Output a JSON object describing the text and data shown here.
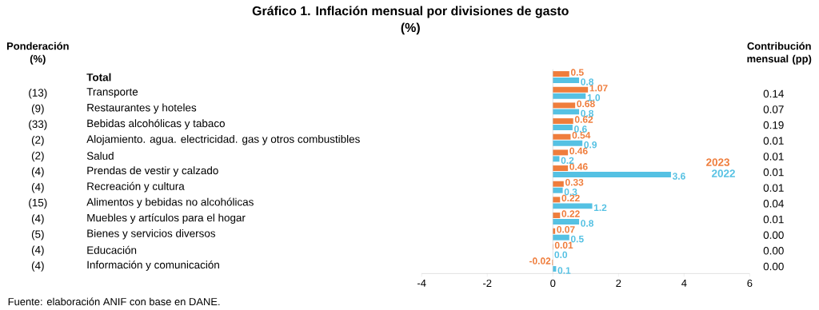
{
  "chart_data": {
    "type": "bar",
    "orientation": "horizontal",
    "title": "Gráfico 1. Inflación mensual por divisiones de gasto",
    "subtitle": "(%)",
    "categories": [
      "**Total**",
      "Transporte",
      "Restaurantes y hoteles",
      "Bebidas alcohólicas y tabaco",
      "Alojamiento. agua. electricidad. gas y otros combustibles",
      "Salud",
      "Prendas de vestir y calzado",
      "Recreación y cultura",
      "Alimentos y bebidas no alcohólicas",
      "Muebles y artículos para el hogar",
      "Bienes y servicios diversos",
      "Educación",
      "Información y comunicación"
    ],
    "series": [
      {
        "name": "2023",
        "color": "#ef7d3c",
        "values": [
          0.5,
          1.07,
          0.68,
          0.62,
          0.54,
          0.46,
          0.46,
          0.33,
          0.22,
          0.22,
          0.07,
          0.01,
          -0.02
        ],
        "value_labels": [
          "0.5",
          "1.07",
          "0.68",
          "0.62",
          "0.54",
          "0.46",
          "0.46",
          "0.33",
          "0.22",
          "0.22",
          "0.07",
          "0.01",
          "-0.02"
        ]
      },
      {
        "name": "2022",
        "color": "#55c1e3",
        "values": [
          0.8,
          1.0,
          0.8,
          0.6,
          0.9,
          0.2,
          3.6,
          0.3,
          1.2,
          0.8,
          0.5,
          0.0,
          0.1
        ],
        "value_labels": [
          "0.8",
          "1.0",
          "0.8",
          "0.6",
          "0.9",
          "0.2",
          "3.6",
          "0.3",
          "1.2",
          "0.8",
          "0.5",
          "0.0",
          "0.1"
        ]
      }
    ],
    "xlim": [
      -4,
      6
    ],
    "xticks": [
      -4,
      -2,
      0,
      2,
      4,
      6
    ],
    "legend": "right",
    "annotations": [
      "Ponderación (%)",
      "Contribución mensual (pp)",
      "Fuente: elaboración ANIF con base en DANE.",
      "(13)",
      "(9)",
      "(33)",
      "(2)",
      "(2)",
      "(4)",
      "(4)",
      "(15)",
      "(4)",
      "(5)",
      "(4)",
      "(4)",
      "0.14",
      "0.07",
      "0.19",
      "0.01",
      "0.01",
      "0.01",
      "0.01",
      "0.04",
      "0.01",
      "0.00",
      "0.00",
      "0.00"
    ]
  }
}
